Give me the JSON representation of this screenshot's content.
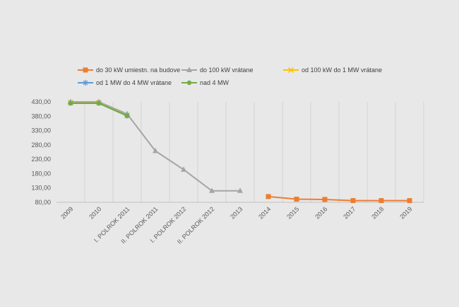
{
  "chart_data": {
    "type": "line",
    "title": "",
    "xlabel": "",
    "ylabel": "",
    "categories": [
      "2009",
      "2010",
      "I. POLROK 2011",
      "II. POLROK 2011",
      "I. POLROK 2012",
      "II. POLROK 2012",
      "2013",
      "2014",
      "2015",
      "2016",
      "2017",
      "2018",
      "2019"
    ],
    "ylim": [
      80,
      430
    ],
    "yticks": [
      "80,00",
      "130,00",
      "180,00",
      "230,00",
      "280,00",
      "330,00",
      "380,00",
      "430,00"
    ],
    "ytick_values": [
      80,
      130,
      180,
      230,
      280,
      330,
      380,
      430
    ],
    "grid": "vertical",
    "legend_position": "top",
    "series": [
      {
        "name": "do 30 kW umiestn. na budove",
        "color": "#ed7d31",
        "marker": "square",
        "values": [
          null,
          null,
          null,
          null,
          null,
          null,
          null,
          100,
          91,
          90,
          86,
          86,
          86
        ]
      },
      {
        "name": "do 100 kW vrátane",
        "color": "#a5a5a5",
        "marker": "triangle",
        "values": [
          430,
          430,
          388,
          259,
          194,
          120,
          120,
          null,
          null,
          null,
          null,
          null,
          null
        ]
      },
      {
        "name": "od 100 kW do 1 MW vrátane",
        "color": "#ffc000",
        "marker": "x",
        "values": [
          427,
          427,
          383,
          null,
          null,
          null,
          null,
          null,
          null,
          null,
          null,
          null,
          null
        ]
      },
      {
        "name": "od 1 MW do 4 MW vrátane",
        "color": "#5b9bd5",
        "marker": "star",
        "values": [
          426,
          426,
          382,
          null,
          null,
          null,
          null,
          null,
          null,
          null,
          null,
          null,
          null
        ]
      },
      {
        "name": "nad 4 MW",
        "color": "#70ad47",
        "marker": "circle",
        "values": [
          425,
          425,
          381,
          null,
          null,
          null,
          null,
          null,
          null,
          null,
          null,
          null,
          null
        ]
      }
    ]
  }
}
